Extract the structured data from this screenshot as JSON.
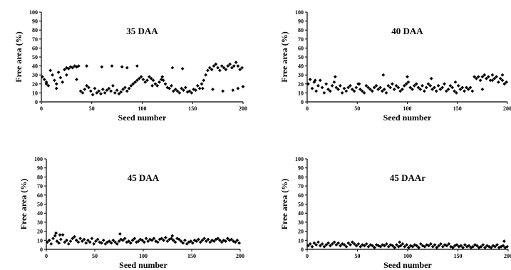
{
  "chart_data": [
    {
      "type": "scatter",
      "title": "35 DAA",
      "xlabel": "Seed number",
      "ylabel": "Free area (%)",
      "xlim": [
        0,
        200
      ],
      "ylim": [
        0,
        100
      ],
      "xticks": [
        0,
        50,
        100,
        150,
        200
      ],
      "yticks": [
        0,
        10,
        20,
        30,
        40,
        50,
        60,
        70,
        80,
        90,
        100
      ],
      "grid": false,
      "legend": "none",
      "marker": "diamond",
      "color": "#000000",
      "x": [
        1,
        3,
        5,
        7,
        9,
        11,
        13,
        15,
        17,
        19,
        21,
        23,
        25,
        27,
        29,
        31,
        33,
        35,
        37,
        39,
        41,
        43,
        45,
        47,
        49,
        51,
        53,
        55,
        57,
        59,
        61,
        63,
        65,
        67,
        69,
        71,
        73,
        75,
        77,
        79,
        81,
        83,
        85,
        87,
        89,
        91,
        93,
        95,
        97,
        99,
        101,
        103,
        105,
        107,
        109,
        111,
        113,
        115,
        117,
        119,
        121,
        123,
        125,
        127,
        129,
        131,
        133,
        135,
        137,
        139,
        141,
        143,
        145,
        147,
        149,
        151,
        153,
        155,
        157,
        159,
        161,
        163,
        165,
        167,
        169,
        171,
        173,
        175,
        177,
        179,
        181,
        183,
        185,
        187,
        189,
        191,
        193,
        195,
        197,
        199,
        5,
        15,
        25,
        35,
        45,
        60,
        70,
        80,
        85,
        95,
        110,
        120,
        130,
        140,
        160,
        170,
        180,
        190,
        195,
        200
      ],
      "y": [
        28,
        25,
        22,
        18,
        35,
        30,
        24,
        20,
        33,
        27,
        22,
        36,
        38,
        37,
        39,
        38,
        40,
        39,
        40,
        12,
        10,
        14,
        18,
        16,
        12,
        8,
        15,
        10,
        12,
        9,
        14,
        10,
        13,
        15,
        12,
        18,
        10,
        13,
        9,
        11,
        14,
        16,
        12,
        15,
        18,
        20,
        22,
        24,
        26,
        28,
        25,
        22,
        24,
        28,
        26,
        24,
        20,
        18,
        22,
        25,
        24,
        20,
        16,
        15,
        18,
        12,
        14,
        12,
        10,
        15,
        13,
        16,
        11,
        12,
        10,
        14,
        13,
        18,
        15,
        20,
        24,
        30,
        35,
        38,
        36,
        40,
        42,
        38,
        35,
        40,
        38,
        36,
        40,
        42,
        38,
        40,
        44,
        40,
        36,
        38,
        20,
        15,
        30,
        25,
        40,
        39,
        40,
        39,
        38,
        40,
        18,
        28,
        38,
        37,
        15,
        14,
        12,
        13,
        15,
        17
      ]
    },
    {
      "type": "scatter",
      "title": "40 DAA",
      "xlabel": "Seed number",
      "ylabel": "Free area (%)",
      "xlim": [
        0,
        200
      ],
      "ylim": [
        0,
        100
      ],
      "xticks": [
        0,
        50,
        100,
        150,
        200
      ],
      "yticks": [
        0,
        10,
        20,
        30,
        40,
        50,
        60,
        70,
        80,
        90,
        100
      ],
      "grid": false,
      "legend": "none",
      "marker": "diamond",
      "color": "#000000",
      "x": [
        1,
        3,
        5,
        7,
        9,
        11,
        13,
        15,
        17,
        19,
        21,
        23,
        25,
        27,
        29,
        31,
        33,
        35,
        37,
        39,
        41,
        43,
        45,
        47,
        49,
        51,
        53,
        55,
        57,
        59,
        61,
        63,
        65,
        67,
        69,
        71,
        73,
        75,
        77,
        79,
        81,
        83,
        85,
        87,
        89,
        91,
        93,
        95,
        97,
        99,
        101,
        103,
        105,
        107,
        109,
        111,
        113,
        115,
        117,
        119,
        121,
        123,
        125,
        127,
        129,
        131,
        133,
        135,
        137,
        139,
        141,
        143,
        145,
        147,
        149,
        151,
        153,
        155,
        157,
        159,
        161,
        163,
        165,
        167,
        169,
        171,
        173,
        175,
        177,
        179,
        181,
        183,
        185,
        187,
        189,
        191,
        193,
        195,
        197,
        199,
        8,
        28,
        52,
        76,
        100,
        124,
        148,
        175,
        185,
        195
      ],
      "y": [
        20,
        25,
        15,
        22,
        12,
        18,
        24,
        16,
        10,
        20,
        14,
        12,
        18,
        22,
        16,
        14,
        18,
        10,
        15,
        12,
        16,
        18,
        14,
        12,
        16,
        20,
        14,
        12,
        10,
        18,
        16,
        14,
        12,
        16,
        18,
        14,
        16,
        12,
        14,
        10,
        18,
        16,
        20,
        14,
        18,
        16,
        12,
        14,
        18,
        20,
        22,
        16,
        14,
        18,
        20,
        16,
        14,
        18,
        12,
        16,
        20,
        18,
        14,
        16,
        12,
        18,
        14,
        16,
        20,
        12,
        14,
        18,
        16,
        12,
        10,
        18,
        14,
        16,
        12,
        16,
        14,
        16,
        12,
        28,
        26,
        28,
        24,
        28,
        30,
        26,
        28,
        24,
        30,
        26,
        28,
        22,
        26,
        24,
        20,
        22,
        24,
        28,
        20,
        30,
        28,
        26,
        22,
        14,
        24,
        30
      ]
    },
    {
      "type": "scatter",
      "title": "45 DAA",
      "xlabel": "Seed number",
      "ylabel": "Free area (%)",
      "xlim": [
        0,
        200
      ],
      "ylim": [
        0,
        100
      ],
      "xticks": [
        0,
        50,
        100,
        150,
        200
      ],
      "yticks": [
        0,
        10,
        20,
        30,
        40,
        50,
        60,
        70,
        80,
        90,
        100
      ],
      "grid": false,
      "legend": "none",
      "marker": "diamond",
      "color": "#000000",
      "x": [
        1,
        3,
        5,
        7,
        9,
        11,
        13,
        15,
        17,
        19,
        21,
        23,
        25,
        27,
        29,
        31,
        33,
        35,
        37,
        39,
        41,
        43,
        45,
        47,
        49,
        51,
        53,
        55,
        57,
        59,
        61,
        63,
        65,
        67,
        69,
        71,
        73,
        75,
        77,
        79,
        81,
        83,
        85,
        87,
        89,
        91,
        93,
        95,
        97,
        99,
        101,
        103,
        105,
        107,
        109,
        111,
        113,
        115,
        117,
        119,
        121,
        123,
        125,
        127,
        129,
        131,
        133,
        135,
        137,
        139,
        141,
        143,
        145,
        147,
        149,
        151,
        153,
        155,
        157,
        159,
        161,
        163,
        165,
        167,
        169,
        171,
        173,
        175,
        177,
        179,
        181,
        183,
        185,
        187,
        189,
        191,
        193,
        195,
        197,
        199,
        10,
        14,
        76,
        130
      ],
      "y": [
        8,
        10,
        6,
        12,
        15,
        9,
        7,
        11,
        16,
        8,
        10,
        6,
        9,
        12,
        14,
        10,
        8,
        12,
        9,
        11,
        7,
        10,
        8,
        12,
        6,
        9,
        11,
        8,
        7,
        10,
        6,
        8,
        9,
        7,
        10,
        8,
        6,
        9,
        11,
        10,
        12,
        8,
        9,
        7,
        10,
        12,
        8,
        9,
        11,
        10,
        8,
        12,
        9,
        11,
        10,
        12,
        9,
        8,
        11,
        12,
        10,
        13,
        9,
        11,
        12,
        10,
        8,
        12,
        11,
        9,
        7,
        10,
        6,
        8,
        9,
        7,
        10,
        9,
        11,
        8,
        10,
        12,
        9,
        11,
        8,
        10,
        9,
        11,
        12,
        10,
        8,
        10,
        9,
        12,
        10,
        11,
        9,
        8,
        10,
        7,
        18,
        16,
        17,
        15
      ]
    },
    {
      "type": "scatter",
      "title": "45 DAAr",
      "xlabel": "Seed number",
      "ylabel": "Free area (%)",
      "xlim": [
        0,
        200
      ],
      "ylim": [
        0,
        100
      ],
      "xticks": [
        0,
        50,
        100,
        150,
        200
      ],
      "yticks": [
        0,
        10,
        20,
        30,
        40,
        50,
        60,
        70,
        80,
        90,
        100
      ],
      "grid": false,
      "legend": "none",
      "marker": "diamond",
      "color": "#000000",
      "x": [
        1,
        3,
        5,
        7,
        9,
        11,
        13,
        15,
        17,
        19,
        21,
        23,
        25,
        27,
        29,
        31,
        33,
        35,
        37,
        39,
        41,
        43,
        45,
        47,
        49,
        51,
        53,
        55,
        57,
        59,
        61,
        63,
        65,
        67,
        69,
        71,
        73,
        75,
        77,
        79,
        81,
        83,
        85,
        87,
        89,
        91,
        93,
        95,
        97,
        99,
        101,
        103,
        105,
        107,
        109,
        111,
        113,
        115,
        117,
        119,
        121,
        123,
        125,
        127,
        129,
        131,
        133,
        135,
        137,
        139,
        141,
        143,
        145,
        147,
        149,
        151,
        153,
        155,
        157,
        159,
        161,
        163,
        165,
        167,
        169,
        171,
        173,
        175,
        177,
        179,
        181,
        183,
        185,
        187,
        189,
        191,
        193,
        195,
        197,
        199,
        92,
        196
      ],
      "y": [
        4,
        6,
        3,
        7,
        5,
        8,
        4,
        6,
        3,
        5,
        7,
        4,
        6,
        8,
        5,
        7,
        4,
        6,
        5,
        3,
        7,
        5,
        8,
        6,
        4,
        6,
        3,
        5,
        4,
        6,
        3,
        5,
        4,
        2,
        5,
        4,
        3,
        5,
        4,
        6,
        3,
        5,
        4,
        2,
        5,
        3,
        4,
        6,
        3,
        5,
        2,
        4,
        3,
        5,
        4,
        2,
        6,
        4,
        3,
        5,
        4,
        6,
        3,
        5,
        2,
        4,
        6,
        3,
        5,
        4,
        6,
        3,
        2,
        4,
        5,
        3,
        4,
        2,
        5,
        3,
        4,
        2,
        3,
        5,
        4,
        2,
        3,
        5,
        2,
        4,
        3,
        2,
        4,
        3,
        5,
        2,
        3,
        4,
        2,
        3,
        8,
        9
      ]
    }
  ]
}
